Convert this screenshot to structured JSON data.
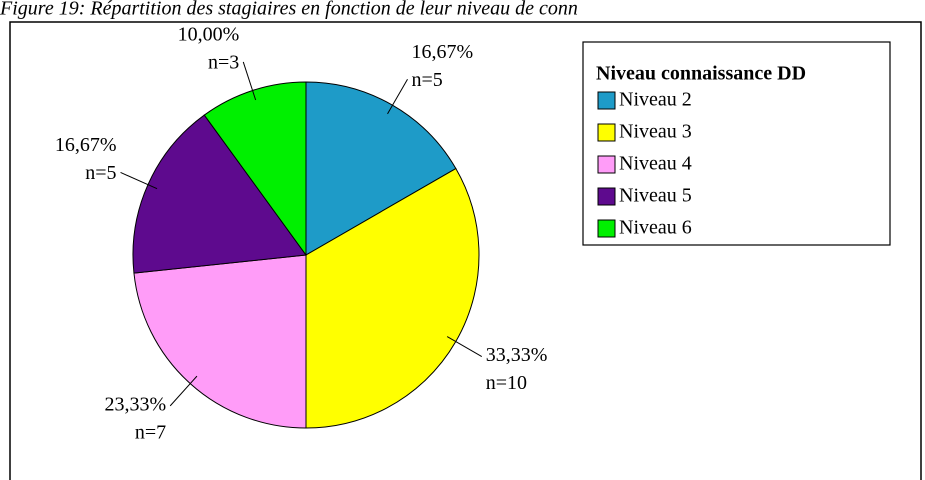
{
  "chart_data": {
    "type": "pie",
    "title": "Figure 19: Répartition des stagiaires en fonction de leur niveau de conn",
    "legend_title": "Niveau connaissance DD",
    "legend": "right",
    "categories": [
      "Niveau 2",
      "Niveau 3",
      "Niveau 4",
      "Niveau 5",
      "Niveau 6"
    ],
    "values": [
      16.67,
      33.33,
      23.33,
      16.67,
      10.0
    ],
    "value_labels": [
      "16,67%",
      "33,33%",
      "23,33%",
      "16,67%",
      "10,00%"
    ],
    "count_labels": [
      "n=5",
      "n=10",
      "n=7",
      "n=5",
      "n=3"
    ],
    "colors": [
      "#1e9bc8",
      "#ffff00",
      "#ff9cf8",
      "#5e0a8e",
      "#00f000"
    ]
  }
}
